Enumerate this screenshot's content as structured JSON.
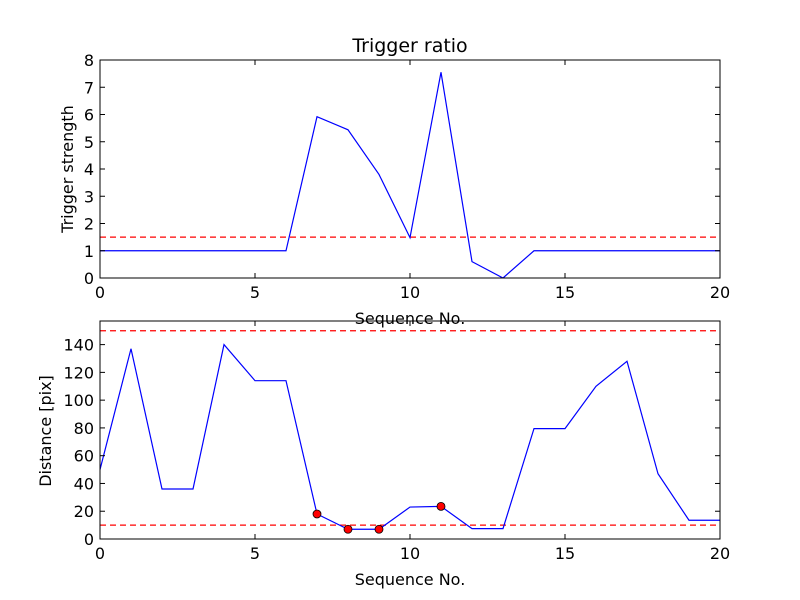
{
  "chart_data": [
    {
      "type": "line",
      "title": "Trigger ratio",
      "xlabel": "Sequence No.",
      "ylabel": "Trigger strength",
      "xlim": [
        0,
        20
      ],
      "ylim": [
        0,
        8
      ],
      "xticks": [
        "0",
        "5",
        "10",
        "15",
        "20"
      ],
      "yticks": [
        "0",
        "1",
        "2",
        "3",
        "4",
        "5",
        "6",
        "7",
        "8"
      ],
      "grid": false,
      "series": [
        {
          "style": "solid",
          "color": "#0000ff",
          "x": [
            0,
            1,
            2,
            3,
            4,
            5,
            6,
            7,
            8,
            9,
            10,
            11,
            12,
            13,
            14,
            15,
            16,
            17,
            18,
            19,
            20
          ],
          "y": [
            1.0,
            1.0,
            1.0,
            1.0,
            1.0,
            1.0,
            1.0,
            5.92,
            5.44,
            3.8,
            1.48,
            7.55,
            0.6,
            0.0,
            1.0,
            1.0,
            1.0,
            1.0,
            1.0,
            1.0,
            1.0
          ]
        }
      ],
      "hlines": [
        {
          "y": 1.5,
          "style": "dashed",
          "color": "#ff0000"
        }
      ]
    },
    {
      "type": "line",
      "title": "",
      "xlabel": "Sequence No.",
      "ylabel": "Distance [pix]",
      "xlim": [
        0,
        20
      ],
      "ylim": [
        0,
        157
      ],
      "xticks": [
        "0",
        "5",
        "10",
        "15",
        "20"
      ],
      "yticks": [
        "0",
        "20",
        "40",
        "60",
        "80",
        "100",
        "120",
        "140"
      ],
      "grid": false,
      "series": [
        {
          "style": "solid",
          "color": "#0000ff",
          "x": [
            0,
            1,
            2,
            3,
            4,
            5,
            6,
            7,
            8,
            9,
            10,
            11,
            12,
            13,
            14,
            15,
            16,
            17,
            18,
            19,
            20
          ],
          "y": [
            50,
            137,
            36,
            36,
            140,
            114,
            114,
            18,
            7,
            7,
            23,
            23.5,
            7.5,
            7.5,
            79.5,
            79.5,
            110,
            128,
            47,
            13.5,
            13.5
          ]
        }
      ],
      "markers": {
        "color": "#ff0000",
        "x": [
          7,
          8,
          9,
          11
        ],
        "y": [
          18,
          7,
          7,
          23.5
        ]
      },
      "hlines": [
        {
          "y": 150,
          "style": "dashed",
          "color": "#ff0000"
        },
        {
          "y": 10,
          "style": "dashed",
          "color": "#ff0000"
        }
      ]
    }
  ]
}
